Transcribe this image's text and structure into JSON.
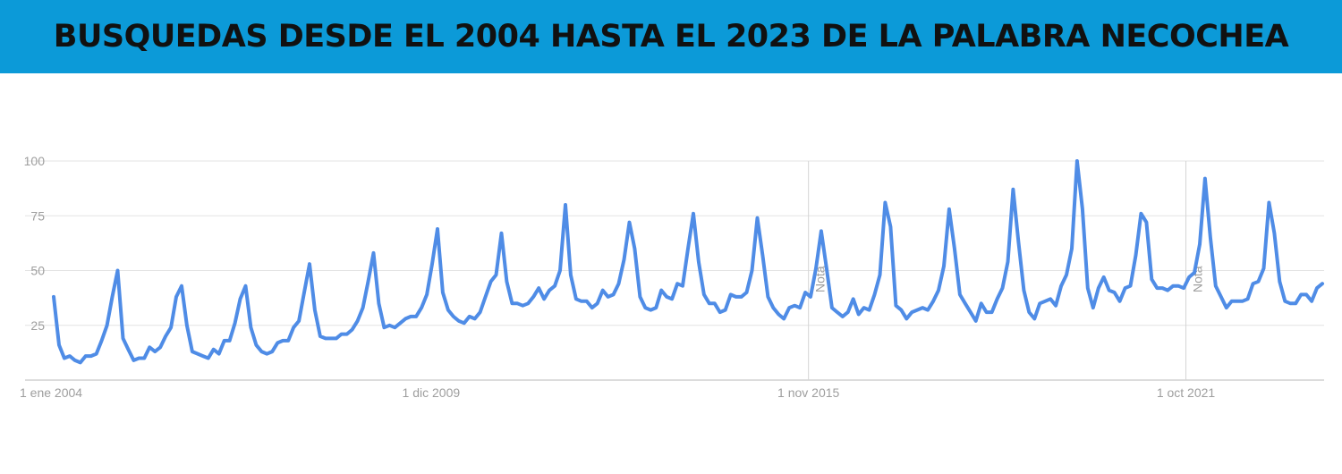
{
  "header": {
    "title": "BUSQUEDAS DESDE EL 2004 HASTA EL 2023 DE LA PALABRA NECOCHEA"
  },
  "colors": {
    "banner": "#0c9ad8",
    "series": "#4f8ce6",
    "grid": "#e3e3e3",
    "axis_text": "#9e9e9e",
    "note_line": "#d5d5d5"
  },
  "chart_data": {
    "type": "line",
    "title": "",
    "xlabel": "",
    "ylabel": "",
    "ylim": [
      0,
      100
    ],
    "grid": true,
    "legend": "none",
    "y_ticks": [
      25,
      50,
      75,
      100
    ],
    "x_ticks": [
      {
        "label": "1 ene 2004",
        "date": "2004-01"
      },
      {
        "label": "1 dic 2009",
        "date": "2009-12"
      },
      {
        "label": "1 nov 2015",
        "date": "2015-11"
      },
      {
        "label": "1 oct 2021",
        "date": "2021-10"
      }
    ],
    "annotations": [
      {
        "text": "Nota",
        "date": "2015-11"
      },
      {
        "text": "Nota",
        "date": "2021-10"
      }
    ],
    "x_start": "2004-01",
    "x_end": "2023-12",
    "values": [
      38,
      16,
      10,
      11,
      9,
      8,
      11,
      11,
      12,
      18,
      25,
      38,
      50,
      19,
      14,
      9,
      10,
      10,
      15,
      13,
      15,
      20,
      24,
      38,
      43,
      25,
      13,
      12,
      11,
      10,
      14,
      12,
      18,
      18,
      26,
      37,
      43,
      24,
      16,
      13,
      12,
      13,
      17,
      18,
      18,
      24,
      27,
      40,
      53,
      32,
      20,
      19,
      19,
      19,
      21,
      21,
      23,
      27,
      33,
      45,
      58,
      35,
      24,
      25,
      24,
      26,
      28,
      29,
      29,
      33,
      39,
      53,
      69,
      40,
      32,
      29,
      27,
      26,
      29,
      28,
      31,
      38,
      45,
      48,
      67,
      45,
      35,
      35,
      34,
      35,
      38,
      42,
      37,
      41,
      43,
      50,
      80,
      48,
      37,
      36,
      36,
      33,
      35,
      41,
      38,
      39,
      44,
      55,
      72,
      60,
      38,
      33,
      32,
      33,
      41,
      38,
      37,
      44,
      43,
      60,
      76,
      54,
      39,
      35,
      35,
      31,
      32,
      39,
      38,
      38,
      40,
      50,
      74,
      57,
      38,
      33,
      30,
      28,
      33,
      34,
      33,
      40,
      38,
      51,
      68,
      51,
      33,
      31,
      29,
      31,
      37,
      30,
      33,
      32,
      39,
      48,
      81,
      70,
      34,
      32,
      28,
      31,
      32,
      33,
      32,
      36,
      41,
      52,
      78,
      60,
      39,
      35,
      31,
      27,
      35,
      31,
      31,
      37,
      42,
      54,
      87,
      63,
      41,
      31,
      28,
      35,
      36,
      37,
      34,
      43,
      48,
      60,
      100,
      78,
      42,
      33,
      42,
      47,
      41,
      40,
      36,
      42,
      43,
      57,
      76,
      72,
      46,
      42,
      42,
      41,
      43,
      43,
      42,
      47,
      49,
      62,
      92,
      65,
      43,
      38,
      33,
      36,
      36,
      36,
      37,
      44,
      45,
      51,
      81,
      67,
      45,
      36,
      35,
      35,
      39,
      39,
      36,
      42,
      44
    ]
  }
}
